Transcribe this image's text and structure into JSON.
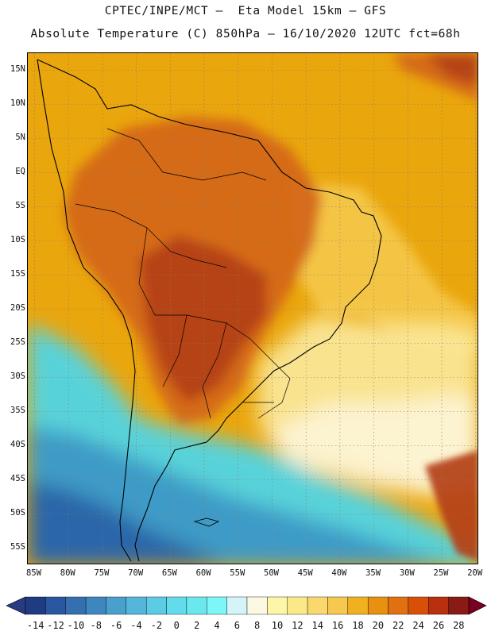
{
  "header": {
    "line1": "CPTEC/INPE/MCT –  Eta Model 15km – GFS",
    "line2": "Absolute Temperature (C) 850hPa – 16/10/2020 12UTC fct=68h"
  },
  "map": {
    "region": "South America",
    "lat_labels": [
      "15N",
      "10N",
      "5N",
      "EQ",
      "5S",
      "10S",
      "15S",
      "20S",
      "25S",
      "30S",
      "35S",
      "40S",
      "45S",
      "50S",
      "55S"
    ],
    "lon_labels": [
      "85W",
      "80W",
      "75W",
      "70W",
      "65W",
      "60W",
      "55W",
      "50W",
      "45W",
      "40W",
      "35W",
      "30W",
      "25W",
      "20W"
    ],
    "lat_values": [
      15,
      10,
      5,
      0,
      -5,
      -10,
      -15,
      -20,
      -25,
      -30,
      -35,
      -40,
      -45,
      -50,
      -55
    ],
    "lon_values": [
      -85,
      -80,
      -75,
      -70,
      -65,
      -60,
      -55,
      -50,
      -45,
      -40,
      -35,
      -30,
      -25,
      -20
    ],
    "lat_range": [
      -57.5,
      17.5
    ],
    "lon_range": [
      -86,
      -19.5
    ]
  },
  "colorbar": {
    "labels": [
      "-14",
      "-12",
      "-10",
      "-8",
      "-6",
      "-4",
      "-2",
      "0",
      "2",
      "4",
      "6",
      "8",
      "10",
      "12",
      "14",
      "16",
      "18",
      "20",
      "22",
      "24",
      "26",
      "28"
    ],
    "colors": [
      "#1f3b82",
      "#2a58a0",
      "#3470b0",
      "#3e86be",
      "#4aa0cc",
      "#55b6da",
      "#5ccbe4",
      "#62dcea",
      "#6ae8ee",
      "#7cf6f6",
      "#d4f4fa",
      "#fdf8e2",
      "#fdf6a8",
      "#fbe888",
      "#f9d86e",
      "#f6c850",
      "#f0b020",
      "#e89010",
      "#e07010",
      "#d85008",
      "#b83010",
      "#8a1a14"
    ],
    "under_color": "#2a3a80",
    "over_color": "#7a0020"
  },
  "field": {
    "background_color": "#eaa60d",
    "fields": [
      {
        "name": "amazon-warm-core",
        "color": "#d4651a"
      },
      {
        "name": "chaco-hot-core",
        "color": "#b4401a"
      },
      {
        "name": "ne-brazil-yellow",
        "color": "#f5c84a"
      },
      {
        "name": "south-atlantic-cool-yellow",
        "color": "#fbe89a"
      },
      {
        "name": "pale-cream-band",
        "color": "#fdf4d6"
      },
      {
        "name": "pacific-cold-cyan",
        "color": "#4cd6ea"
      },
      {
        "name": "patagonia-blue",
        "color": "#3c96c6"
      },
      {
        "name": "deep-southern-blue",
        "color": "#2a62a6"
      }
    ]
  }
}
